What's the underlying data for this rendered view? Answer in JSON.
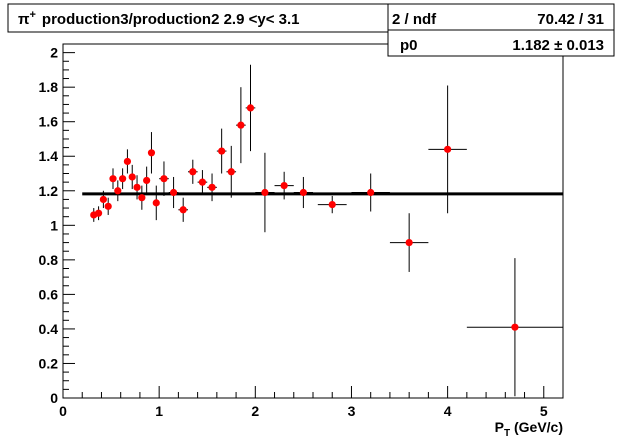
{
  "title_box": {
    "title_prefix": "π",
    "title_sup": "+",
    "title_main": "production3/production2 2.9 <y< 3.1"
  },
  "stats_box": {
    "chi2_label_fragment": "2 / ndf",
    "chi2_value": "70.42 / 31",
    "p0_label": "p0",
    "p0_value": "1.182 ± 0.013"
  },
  "chart_data": {
    "type": "scatter",
    "title": "π+ production3/production2 2.9 <y< 3.1",
    "xlabel": "PT (GeV/c)",
    "xlabel_parts": {
      "main": "P",
      "sub": "T",
      "rest": " (GeV/c)"
    },
    "ylabel": "",
    "xlim": [
      0,
      5.2
    ],
    "ylim": [
      0,
      2.05
    ],
    "x_ticks": [
      "0",
      "1",
      "2",
      "3",
      "4",
      "5"
    ],
    "y_ticks": [
      "0",
      "0.2",
      "0.4",
      "0.6",
      "0.8",
      "1",
      "1.2",
      "1.4",
      "1.6",
      "1.8",
      "2"
    ],
    "grid": false,
    "marker_color": "#ff0000",
    "errorbar_color": "#000000",
    "fit": {
      "type": "constant",
      "p0": 1.182,
      "x_range": [
        0.2,
        5.2
      ],
      "color": "#000000"
    },
    "points": [
      {
        "x": 0.32,
        "y": 1.06,
        "xerr": 0.025,
        "yerr": 0.04
      },
      {
        "x": 0.37,
        "y": 1.07,
        "xerr": 0.025,
        "yerr": 0.04
      },
      {
        "x": 0.42,
        "y": 1.15,
        "xerr": 0.025,
        "yerr": 0.05
      },
      {
        "x": 0.47,
        "y": 1.11,
        "xerr": 0.025,
        "yerr": 0.05
      },
      {
        "x": 0.52,
        "y": 1.27,
        "xerr": 0.025,
        "yerr": 0.06
      },
      {
        "x": 0.57,
        "y": 1.2,
        "xerr": 0.025,
        "yerr": 0.06
      },
      {
        "x": 0.62,
        "y": 1.27,
        "xerr": 0.025,
        "yerr": 0.06
      },
      {
        "x": 0.67,
        "y": 1.37,
        "xerr": 0.025,
        "yerr": 0.07
      },
      {
        "x": 0.72,
        "y": 1.28,
        "xerr": 0.025,
        "yerr": 0.07
      },
      {
        "x": 0.77,
        "y": 1.22,
        "xerr": 0.025,
        "yerr": 0.07
      },
      {
        "x": 0.82,
        "y": 1.16,
        "xerr": 0.025,
        "yerr": 0.07
      },
      {
        "x": 0.87,
        "y": 1.26,
        "xerr": 0.025,
        "yerr": 0.08
      },
      {
        "x": 0.92,
        "y": 1.42,
        "xerr": 0.025,
        "yerr": 0.12
      },
      {
        "x": 0.97,
        "y": 1.13,
        "xerr": 0.025,
        "yerr": 0.1
      },
      {
        "x": 1.05,
        "y": 1.27,
        "xerr": 0.05,
        "yerr": 0.1
      },
      {
        "x": 1.15,
        "y": 1.19,
        "xerr": 0.05,
        "yerr": 0.09
      },
      {
        "x": 1.25,
        "y": 1.09,
        "xerr": 0.05,
        "yerr": 0.07
      },
      {
        "x": 1.35,
        "y": 1.31,
        "xerr": 0.05,
        "yerr": 0.07
      },
      {
        "x": 1.45,
        "y": 1.25,
        "xerr": 0.05,
        "yerr": 0.07
      },
      {
        "x": 1.55,
        "y": 1.22,
        "xerr": 0.05,
        "yerr": 0.08
      },
      {
        "x": 1.65,
        "y": 1.43,
        "xerr": 0.05,
        "yerr": 0.13
      },
      {
        "x": 1.75,
        "y": 1.31,
        "xerr": 0.05,
        "yerr": 0.15
      },
      {
        "x": 1.85,
        "y": 1.58,
        "xerr": 0.05,
        "yerr": 0.22
      },
      {
        "x": 1.95,
        "y": 1.68,
        "xerr": 0.05,
        "yerr": 0.25
      },
      {
        "x": 2.1,
        "y": 1.19,
        "xerr": 0.1,
        "yerr": 0.23
      },
      {
        "x": 2.3,
        "y": 1.23,
        "xerr": 0.1,
        "yerr": 0.08
      },
      {
        "x": 2.5,
        "y": 1.19,
        "xerr": 0.1,
        "yerr": 0.09
      },
      {
        "x": 2.8,
        "y": 1.12,
        "xerr": 0.15,
        "yerr": 0.05
      },
      {
        "x": 3.2,
        "y": 1.19,
        "xerr": 0.2,
        "yerr": 0.11
      },
      {
        "x": 3.6,
        "y": 0.9,
        "xerr": 0.2,
        "yerr": 0.17
      },
      {
        "x": 4.0,
        "y": 1.44,
        "xerr": 0.2,
        "yerr": 0.37
      },
      {
        "x": 4.7,
        "y": 0.41,
        "xerr": 0.5,
        "yerr": 0.4
      }
    ]
  }
}
